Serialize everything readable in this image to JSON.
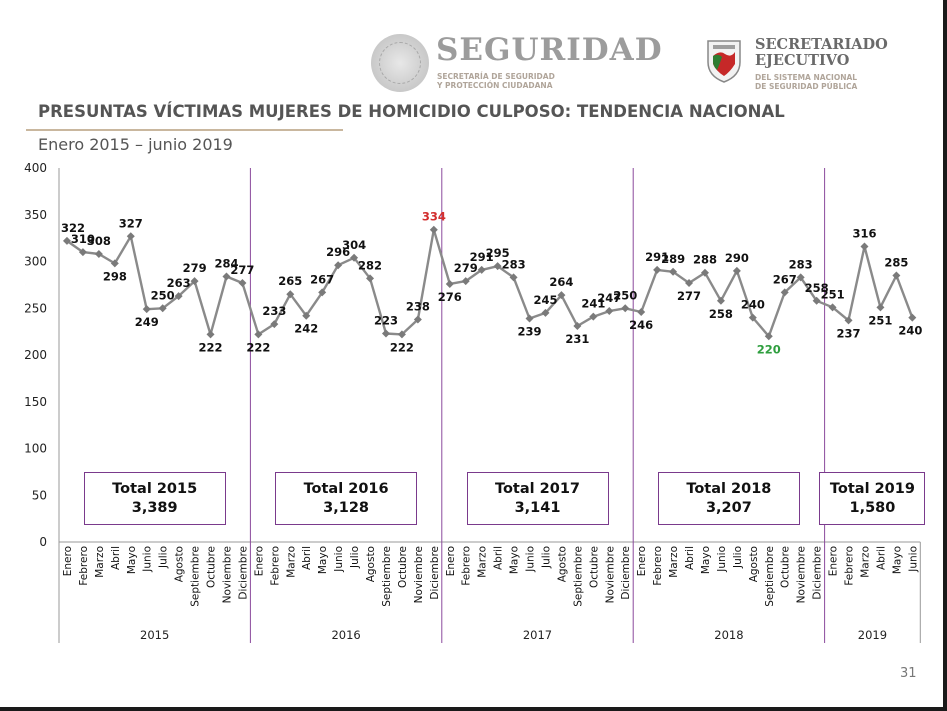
{
  "header": {
    "seguridad_title": "SEGURIDAD",
    "seguridad_sub1": "SECRETARÍA DE SEGURIDAD",
    "seguridad_sub2": "Y PROTECCIÓN CIUDADANA",
    "secretariado_title1": "SECRETARIADO",
    "secretariado_title2": "EJECUTIVO",
    "secretariado_sub1": "DEL SISTEMA NACIONAL",
    "secretariado_sub2": "DE SEGURIDAD PÚBLICA"
  },
  "page_number": "31",
  "colors": {
    "line": "#8a8a8a",
    "divider": "#8b4a9c",
    "max": "#d32f2f",
    "min": "#2e9e3e",
    "title": "#555555"
  },
  "chart_data": {
    "type": "line",
    "title": "PRESUNTAS VÍCTIMAS MUJERES DE HOMICIDIO CULPOSO: TENDENCIA NACIONAL",
    "subtitle": "Enero 2015 – junio 2019",
    "ylim": [
      0,
      400
    ],
    "yticks": [
      0,
      50,
      100,
      150,
      200,
      250,
      300,
      350,
      400
    ],
    "grid": false,
    "months": [
      "Enero",
      "Febrero",
      "Marzo",
      "Abril",
      "Mayo",
      "Junio",
      "Julio",
      "Agosto",
      "Septiembre",
      "Octubre",
      "Noviembre",
      "Diciembre"
    ],
    "years": [
      {
        "year": "2015",
        "values": [
          322,
          310,
          308,
          298,
          327,
          249,
          250,
          263,
          279,
          222,
          284,
          277
        ],
        "total_label": "Total 2015",
        "total": "3,389"
      },
      {
        "year": "2016",
        "values": [
          222,
          233,
          265,
          242,
          267,
          296,
          304,
          282,
          223,
          222,
          238,
          334
        ],
        "total_label": "Total 2016",
        "total": "3,128"
      },
      {
        "year": "2017",
        "values": [
          276,
          279,
          291,
          295,
          283,
          239,
          245,
          264,
          231,
          241,
          247,
          250
        ],
        "total_label": "Total 2017",
        "total": "3,141"
      },
      {
        "year": "2018",
        "values": [
          246,
          291,
          289,
          277,
          288,
          258,
          290,
          240,
          220,
          267,
          283,
          258
        ],
        "total_label": "Total 2018",
        "total": "3,207"
      },
      {
        "year": "2019",
        "values": [
          251,
          237,
          316,
          251,
          285,
          240
        ],
        "total_label": "Total 2019",
        "total": "1,580"
      }
    ],
    "max": {
      "value": 334,
      "period": "Diciembre 2016"
    },
    "min": {
      "value": 220,
      "period": "Septiembre 2018"
    }
  }
}
